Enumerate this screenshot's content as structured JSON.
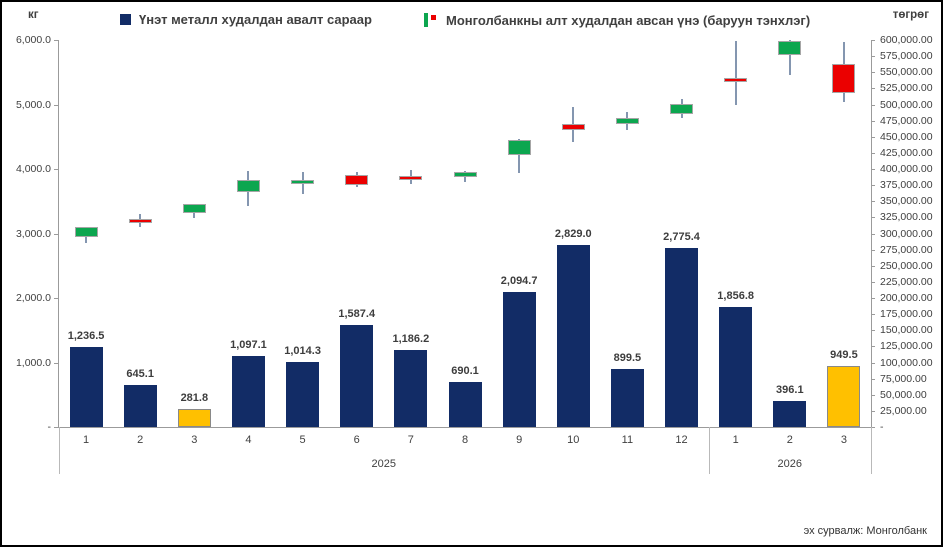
{
  "footer": {
    "source": "эх сурвалж: Монголбанк"
  },
  "legend": [
    {
      "label": "Үнэт металл худалдан авалт сараар",
      "icon": "navy-square"
    },
    {
      "label": "Монголбанкны алт худалдан авсан үнэ (баруун тэнхлэг)",
      "icon": "candlestick"
    }
  ],
  "colors": {
    "bar_navy": "#122C66",
    "bar_highlight": "#FFC000",
    "bar_highlight_border": "#898989",
    "candle_up": "#0CA64F",
    "candle_down": "#EB0000",
    "candle_border": "#A6A6A6",
    "wick": "#8496B0",
    "axis_text": "#404040"
  },
  "chart_data": {
    "type": [
      "bar",
      "candlestick"
    ],
    "title": "",
    "left_axis": {
      "unit": "кг",
      "min": 0,
      "max": 6000,
      "step": 1000,
      "tick_values": [
        0,
        1000,
        2000,
        3000,
        4000,
        5000,
        6000
      ],
      "tick_labels": [
        "-",
        "1,000.0",
        "2,000.0",
        "3,000.0",
        "4,000.0",
        "5,000.0",
        "6,000.0"
      ]
    },
    "right_axis": {
      "unit": "төгрөг",
      "min": 0,
      "max": 600000,
      "step": 25000,
      "tick_values": [
        0,
        25000,
        50000,
        75000,
        100000,
        125000,
        150000,
        175000,
        200000,
        225000,
        250000,
        275000,
        300000,
        325000,
        350000,
        375000,
        400000,
        425000,
        450000,
        475000,
        500000,
        525000,
        550000,
        575000,
        600000
      ],
      "tick_labels": [
        "-",
        "25,000.00",
        "50,000.00",
        "75,000.00",
        "100,000.00",
        "125,000.00",
        "150,000.00",
        "175,000.00",
        "200,000.00",
        "225,000.00",
        "250,000.00",
        "275,000.00",
        "300,000.00",
        "325,000.00",
        "350,000.00",
        "375,000.00",
        "400,000.00",
        "425,000.00",
        "450,000.00",
        "475,000.00",
        "500,000.00",
        "525,000.00",
        "550,000.00",
        "575,000.00",
        "600,000.00"
      ]
    },
    "categories": [
      "1",
      "2",
      "3",
      "4",
      "5",
      "6",
      "7",
      "8",
      "9",
      "10",
      "11",
      "12",
      "1",
      "2",
      "3"
    ],
    "year_groups": [
      {
        "label": "2025",
        "start": 0,
        "span": 12
      },
      {
        "label": "2026",
        "start": 12,
        "span": 3
      }
    ],
    "series": [
      {
        "name": "Үнэт металл худалдан авалт сараар",
        "type": "bar",
        "axis": "left",
        "unit": "кг",
        "values": [
          1236.5,
          645.1,
          281.8,
          1097.1,
          1014.3,
          1587.4,
          1186.2,
          690.1,
          2094.7,
          2829.0,
          899.5,
          2775.4,
          1856.8,
          396.1,
          949.5
        ],
        "labels": [
          "1,236.5",
          "645.1",
          "281.8",
          "1,097.1",
          "1,014.3",
          "1,587.4",
          "1,186.2",
          "690.1",
          "2,094.7",
          "2,829.0",
          "899.5",
          "2,775.4",
          "1,856.8",
          "396.1",
          "949.5"
        ],
        "highlight_indices": [
          2,
          14
        ]
      },
      {
        "name": "Монголбанкны алт худалдан авсан үнэ (баруун тэнхлэг)",
        "type": "candlestick",
        "axis": "right",
        "unit": "төгрөг",
        "points": [
          {
            "year": "2025",
            "month": "1",
            "open": 295000,
            "high": 310000,
            "low": 285000,
            "close": 310000,
            "dir": "up"
          },
          {
            "year": "2025",
            "month": "2",
            "open": 322000,
            "high": 330000,
            "low": 310000,
            "close": 316000,
            "dir": "down"
          },
          {
            "year": "2025",
            "month": "3",
            "open": 332000,
            "high": 346000,
            "low": 324000,
            "close": 346000,
            "dir": "up"
          },
          {
            "year": "2025",
            "month": "4",
            "open": 364000,
            "high": 397000,
            "low": 343000,
            "close": 383000,
            "dir": "up"
          },
          {
            "year": "2025",
            "month": "5",
            "open": 378000,
            "high": 395000,
            "low": 361000,
            "close": 383000,
            "dir": "up"
          },
          {
            "year": "2025",
            "month": "6",
            "open": 391000,
            "high": 395000,
            "low": 372000,
            "close": 375000,
            "dir": "down"
          },
          {
            "year": "2025",
            "month": "7",
            "open": 389000,
            "high": 398000,
            "low": 377000,
            "close": 383000,
            "dir": "down"
          },
          {
            "year": "2025",
            "month": "8",
            "open": 388000,
            "high": 397000,
            "low": 380000,
            "close": 395000,
            "dir": "up"
          },
          {
            "year": "2025",
            "month": "9",
            "open": 422000,
            "high": 446000,
            "low": 394000,
            "close": 445000,
            "dir": "up"
          },
          {
            "year": "2025",
            "month": "10",
            "open": 470000,
            "high": 496000,
            "low": 442000,
            "close": 460000,
            "dir": "down"
          },
          {
            "year": "2025",
            "month": "11",
            "open": 470000,
            "high": 488000,
            "low": 460000,
            "close": 479000,
            "dir": "up"
          },
          {
            "year": "2025",
            "month": "12",
            "open": 485000,
            "high": 508000,
            "low": 479000,
            "close": 501000,
            "dir": "up"
          },
          {
            "year": "2026",
            "month": "1",
            "open": 541000,
            "high": 598000,
            "low": 499000,
            "close": 535000,
            "dir": "down"
          },
          {
            "year": "2026",
            "month": "2",
            "open": 577000,
            "high": 600000,
            "low": 546000,
            "close": 599000,
            "dir": "up"
          },
          {
            "year": "2026",
            "month": "3",
            "open": 563000,
            "high": 597000,
            "low": 504000,
            "close": 518000,
            "dir": "down"
          }
        ]
      }
    ]
  }
}
